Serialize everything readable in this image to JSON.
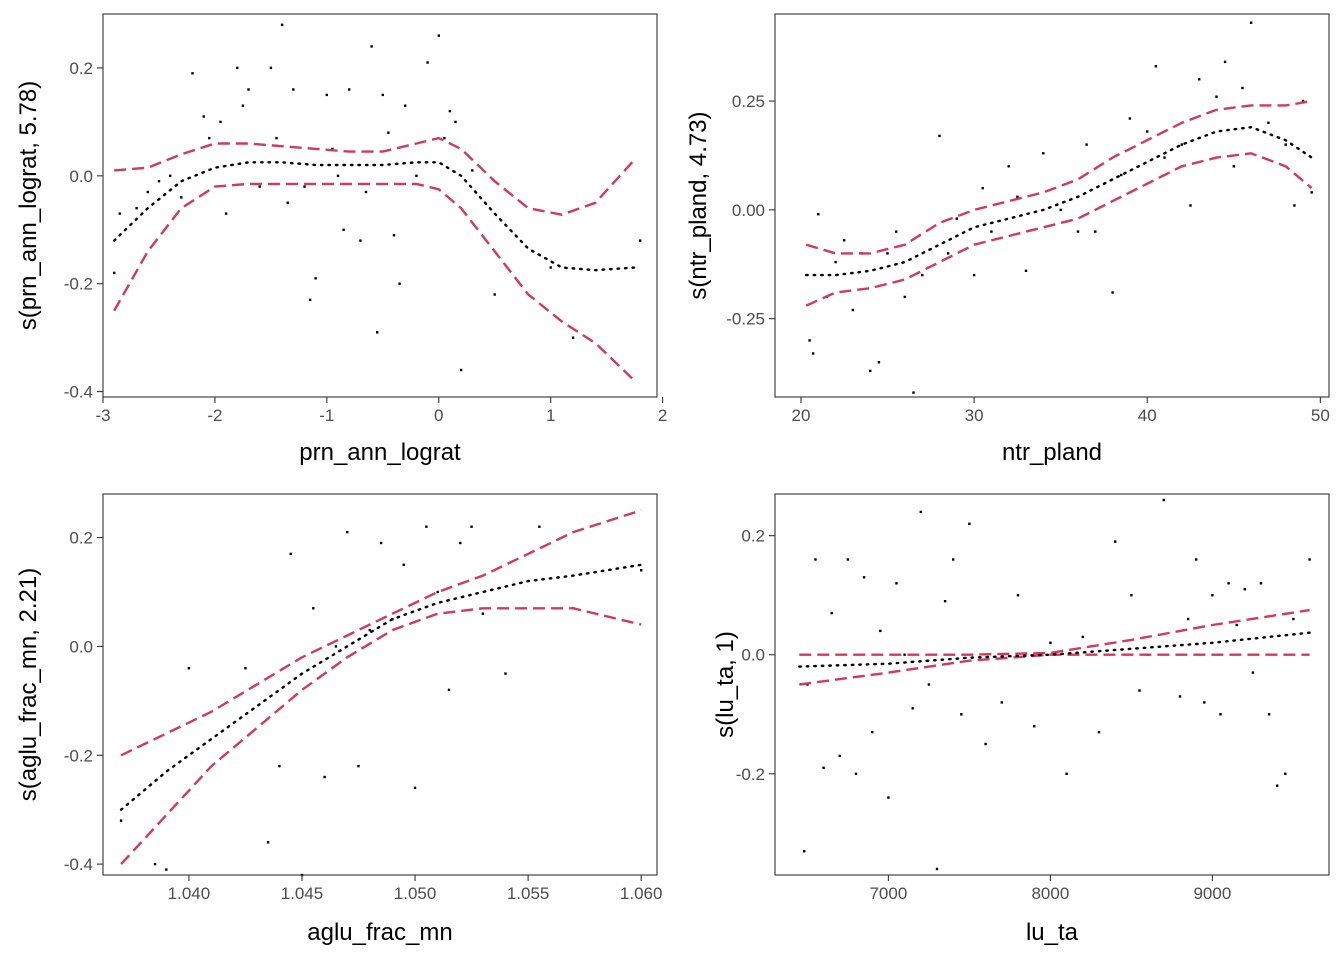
{
  "chart_data": [
    {
      "type": "scatter",
      "xlabel": "prn_ann_lograt",
      "ylabel": "s(prn_ann_lograt, 5.78)",
      "xlim": [
        -3.0,
        1.95
      ],
      "ylim": [
        -0.41,
        0.3
      ],
      "xticks": [
        -3,
        -2,
        -1,
        0,
        1,
        2
      ],
      "xtick_labels": [
        "-3",
        "-2",
        "-1",
        "0",
        "1",
        "2"
      ],
      "yticks": [
        -0.4,
        -0.2,
        0.0,
        0.2
      ],
      "ytick_labels": [
        "-0.4",
        "-0.2",
        "0.0",
        "0.2"
      ],
      "grid": false,
      "fit_line": {
        "x": [
          -2.9,
          -2.6,
          -2.3,
          -2.0,
          -1.7,
          -1.4,
          -1.1,
          -0.8,
          -0.5,
          -0.2,
          0.0,
          0.2,
          0.5,
          0.8,
          1.1,
          1.4,
          1.75
        ],
        "y": [
          -0.12,
          -0.06,
          -0.01,
          0.015,
          0.025,
          0.025,
          0.02,
          0.02,
          0.02,
          0.025,
          0.025,
          0.0,
          -0.07,
          -0.135,
          -0.17,
          -0.175,
          -0.17
        ]
      },
      "upper_band": {
        "x": [
          -2.9,
          -2.6,
          -2.3,
          -2.0,
          -1.7,
          -1.4,
          -1.1,
          -0.8,
          -0.5,
          -0.2,
          0.0,
          0.2,
          0.5,
          0.8,
          1.1,
          1.4,
          1.75
        ],
        "y": [
          0.01,
          0.015,
          0.04,
          0.06,
          0.06,
          0.055,
          0.05,
          0.045,
          0.045,
          0.06,
          0.07,
          0.05,
          -0.01,
          -0.06,
          -0.072,
          -0.05,
          0.03
        ]
      },
      "lower_band": {
        "x": [
          -2.9,
          -2.6,
          -2.3,
          -2.0,
          -1.7,
          -1.4,
          -1.1,
          -0.8,
          -0.5,
          -0.2,
          0.0,
          0.2,
          0.5,
          0.8,
          1.1,
          1.4,
          1.75
        ],
        "y": [
          -0.25,
          -0.14,
          -0.06,
          -0.02,
          -0.015,
          -0.015,
          -0.015,
          -0.015,
          -0.015,
          -0.015,
          -0.025,
          -0.06,
          -0.14,
          -0.22,
          -0.27,
          -0.31,
          -0.38
        ]
      },
      "points_x": [
        -2.9,
        -2.85,
        -2.7,
        -2.6,
        -2.5,
        -2.4,
        -2.3,
        -2.2,
        -2.1,
        -2.05,
        -1.95,
        -1.9,
        -1.8,
        -1.75,
        -1.7,
        -1.6,
        -1.5,
        -1.45,
        -1.4,
        -1.35,
        -1.3,
        -1.2,
        -1.15,
        -1.1,
        -1.0,
        -0.95,
        -0.9,
        -0.85,
        -0.8,
        -0.7,
        -0.65,
        -0.6,
        -0.55,
        -0.5,
        -0.45,
        -0.4,
        -0.35,
        -0.3,
        -0.2,
        -0.1,
        0.0,
        0.05,
        0.1,
        0.15,
        0.2,
        0.3,
        0.5,
        1.0,
        1.2,
        1.8
      ],
      "points_y": [
        -0.18,
        -0.07,
        -0.06,
        -0.03,
        -0.01,
        0.0,
        -0.04,
        0.19,
        0.11,
        0.07,
        0.1,
        -0.07,
        0.2,
        0.13,
        0.16,
        -0.02,
        0.2,
        0.07,
        0.28,
        -0.05,
        0.16,
        -0.02,
        -0.23,
        -0.19,
        0.15,
        0.05,
        0.0,
        -0.1,
        0.16,
        -0.12,
        -0.03,
        0.24,
        -0.29,
        0.15,
        0.08,
        -0.11,
        -0.2,
        0.13,
        0.0,
        0.21,
        0.26,
        0.07,
        0.12,
        0.1,
        -0.36,
        0.01,
        -0.22,
        -0.17,
        -0.3,
        -0.12
      ]
    },
    {
      "type": "scatter",
      "xlabel": "ntr_pland",
      "ylabel": "s(ntr_pland, 4.73)",
      "xlim": [
        18.5,
        50.5
      ],
      "ylim": [
        -0.43,
        0.45
      ],
      "xticks": [
        20,
        30,
        40,
        50
      ],
      "xtick_labels": [
        "20",
        "30",
        "40",
        "50"
      ],
      "yticks": [
        -0.25,
        0.0,
        0.25
      ],
      "ytick_labels": [
        "-0.25",
        "0.00",
        "0.25"
      ],
      "grid": false,
      "fit_line": {
        "x": [
          20.3,
          22,
          24,
          26,
          28,
          30,
          32,
          34,
          36,
          38,
          40,
          42,
          44,
          46,
          48,
          49.5
        ],
        "y": [
          -0.15,
          -0.15,
          -0.14,
          -0.12,
          -0.08,
          -0.04,
          -0.02,
          0.0,
          0.03,
          0.07,
          0.11,
          0.15,
          0.18,
          0.19,
          0.16,
          0.12
        ]
      },
      "upper_band": {
        "x": [
          20.3,
          22,
          24,
          26,
          28,
          30,
          32,
          34,
          36,
          38,
          40,
          42,
          44,
          46,
          48,
          49.5
        ],
        "y": [
          -0.08,
          -0.1,
          -0.1,
          -0.08,
          -0.03,
          0.0,
          0.02,
          0.04,
          0.07,
          0.12,
          0.16,
          0.2,
          0.23,
          0.24,
          0.24,
          0.25
        ]
      },
      "lower_band": {
        "x": [
          20.3,
          22,
          24,
          26,
          28,
          30,
          32,
          34,
          36,
          38,
          40,
          42,
          44,
          46,
          48,
          49.5
        ],
        "y": [
          -0.22,
          -0.19,
          -0.18,
          -0.16,
          -0.12,
          -0.08,
          -0.06,
          -0.04,
          -0.02,
          0.02,
          0.06,
          0.1,
          0.12,
          0.13,
          0.1,
          0.05
        ]
      },
      "points_x": [
        20.5,
        20.7,
        21,
        21.5,
        22,
        22.5,
        23,
        23.5,
        24,
        24.5,
        25,
        25.5,
        26,
        26.5,
        27,
        28,
        28.5,
        29,
        30,
        30.5,
        31,
        32,
        32.5,
        33,
        34,
        35,
        36,
        36.5,
        37,
        38,
        38.5,
        39,
        40,
        40.5,
        41,
        42,
        42.5,
        43,
        44,
        44.5,
        45,
        45.5,
        46,
        47,
        48,
        48.5,
        49,
        49.5
      ],
      "points_y": [
        -0.3,
        -0.33,
        -0.01,
        -0.2,
        -0.12,
        -0.07,
        -0.23,
        -0.1,
        -0.37,
        -0.35,
        -0.1,
        -0.05,
        -0.2,
        -0.42,
        -0.15,
        0.17,
        -0.1,
        -0.02,
        -0.15,
        0.05,
        -0.05,
        0.1,
        0.03,
        -0.14,
        0.13,
        0.0,
        -0.05,
        0.15,
        -0.05,
        -0.19,
        0.08,
        0.21,
        0.18,
        0.33,
        0.12,
        0.15,
        0.01,
        0.3,
        0.26,
        0.34,
        0.1,
        0.28,
        0.43,
        0.2,
        0.15,
        0.01,
        0.25,
        0.04
      ]
    },
    {
      "type": "scatter",
      "xlabel": "aglu_frac_mn",
      "ylabel": "s(aglu_frac_mn, 2.21)",
      "xlim": [
        1.0362,
        1.0607
      ],
      "ylim": [
        -0.42,
        0.28
      ],
      "xticks": [
        1.04,
        1.045,
        1.05,
        1.055,
        1.06
      ],
      "xtick_labels": [
        "1.040",
        "1.045",
        "1.050",
        "1.055",
        "1.060"
      ],
      "yticks": [
        -0.4,
        -0.2,
        0.0,
        0.2
      ],
      "ytick_labels": [
        "-0.4",
        "-0.2",
        "0.0",
        "0.2"
      ],
      "grid": false,
      "fit_line": {
        "x": [
          1.037,
          1.039,
          1.041,
          1.043,
          1.045,
          1.047,
          1.049,
          1.051,
          1.053,
          1.055,
          1.057,
          1.06
        ],
        "y": [
          -0.3,
          -0.23,
          -0.17,
          -0.11,
          -0.05,
          0.0,
          0.05,
          0.08,
          0.1,
          0.12,
          0.13,
          0.15
        ]
      },
      "upper_band": {
        "x": [
          1.037,
          1.039,
          1.041,
          1.043,
          1.045,
          1.047,
          1.049,
          1.051,
          1.053,
          1.055,
          1.057,
          1.06
        ],
        "y": [
          -0.2,
          -0.16,
          -0.12,
          -0.07,
          -0.02,
          0.02,
          0.06,
          0.1,
          0.13,
          0.17,
          0.21,
          0.25
        ]
      },
      "lower_band": {
        "x": [
          1.037,
          1.039,
          1.041,
          1.043,
          1.045,
          1.047,
          1.049,
          1.051,
          1.053,
          1.055,
          1.057,
          1.06
        ],
        "y": [
          -0.4,
          -0.31,
          -0.22,
          -0.15,
          -0.08,
          -0.02,
          0.03,
          0.06,
          0.07,
          0.07,
          0.07,
          0.04
        ]
      },
      "points_x": [
        1.037,
        1.0385,
        1.039,
        1.04,
        1.0425,
        1.0435,
        1.044,
        1.0445,
        1.045,
        1.0455,
        1.046,
        1.0465,
        1.047,
        1.0475,
        1.048,
        1.0485,
        1.049,
        1.0495,
        1.05,
        1.0505,
        1.051,
        1.0515,
        1.052,
        1.0525,
        1.053,
        1.054,
        1.0555,
        1.057,
        1.06
      ],
      "points_y": [
        -0.32,
        -0.4,
        -0.41,
        -0.04,
        -0.04,
        -0.36,
        -0.22,
        0.17,
        -0.42,
        0.07,
        -0.24,
        0.0,
        0.21,
        -0.22,
        0.03,
        0.19,
        0.05,
        0.15,
        -0.26,
        0.22,
        0.1,
        -0.08,
        0.19,
        0.22,
        0.06,
        -0.05,
        0.22,
        0.07,
        0.14
      ]
    },
    {
      "type": "scatter",
      "xlabel": "lu_ta",
      "ylabel": "s(lu_ta, 1)",
      "xlim": [
        6300,
        9720
      ],
      "ylim": [
        -0.37,
        0.27
      ],
      "xticks": [
        7000,
        8000,
        9000
      ],
      "xtick_labels": [
        "7000",
        "8000",
        "9000"
      ],
      "yticks": [
        -0.2,
        0.0,
        0.2
      ],
      "ytick_labels": [
        "-0.2",
        "0.0",
        "0.2"
      ],
      "grid": false,
      "fit_line": {
        "x": [
          6450,
          7000,
          7500,
          8000,
          8500,
          9000,
          9600
        ],
        "y": [
          -0.02,
          -0.015,
          -0.005,
          0.0,
          0.01,
          0.02,
          0.037
        ]
      },
      "upper_band": {
        "x": [
          6450,
          7000,
          7500,
          8000,
          8500,
          9000,
          9600
        ],
        "y": [
          0.0,
          0.0,
          0.0,
          0.003,
          0.025,
          0.05,
          0.075
        ]
      },
      "lower_band": {
        "x": [
          6450,
          7000,
          7500,
          8000,
          8500,
          9000,
          9600
        ],
        "y": [
          -0.05,
          -0.03,
          -0.01,
          0.0,
          0.0,
          0.0,
          0.0
        ]
      },
      "points_x": [
        6480,
        6500,
        6550,
        6600,
        6650,
        6700,
        6750,
        6800,
        6850,
        6900,
        6950,
        7000,
        7050,
        7100,
        7150,
        7200,
        7250,
        7300,
        7350,
        7400,
        7450,
        7500,
        7600,
        7700,
        7800,
        7900,
        8000,
        8100,
        8200,
        8300,
        8400,
        8500,
        8550,
        8600,
        8700,
        8800,
        8850,
        8900,
        8950,
        9000,
        9050,
        9100,
        9150,
        9200,
        9250,
        9300,
        9350,
        9400,
        9450,
        9500,
        9600
      ],
      "points_y": [
        -0.33,
        -0.05,
        0.16,
        -0.19,
        0.07,
        -0.17,
        0.16,
        -0.2,
        0.13,
        -0.13,
        0.04,
        -0.24,
        0.12,
        0.0,
        -0.09,
        0.24,
        -0.05,
        -0.36,
        0.09,
        0.16,
        -0.1,
        0.22,
        -0.15,
        -0.08,
        0.1,
        -0.12,
        0.02,
        -0.2,
        0.03,
        -0.13,
        0.19,
        0.1,
        -0.06,
        0.0,
        0.26,
        -0.07,
        0.06,
        0.16,
        -0.08,
        0.1,
        -0.1,
        0.12,
        0.05,
        0.11,
        -0.03,
        0.12,
        -0.1,
        -0.22,
        -0.2,
        0.06,
        0.16
      ]
    }
  ]
}
